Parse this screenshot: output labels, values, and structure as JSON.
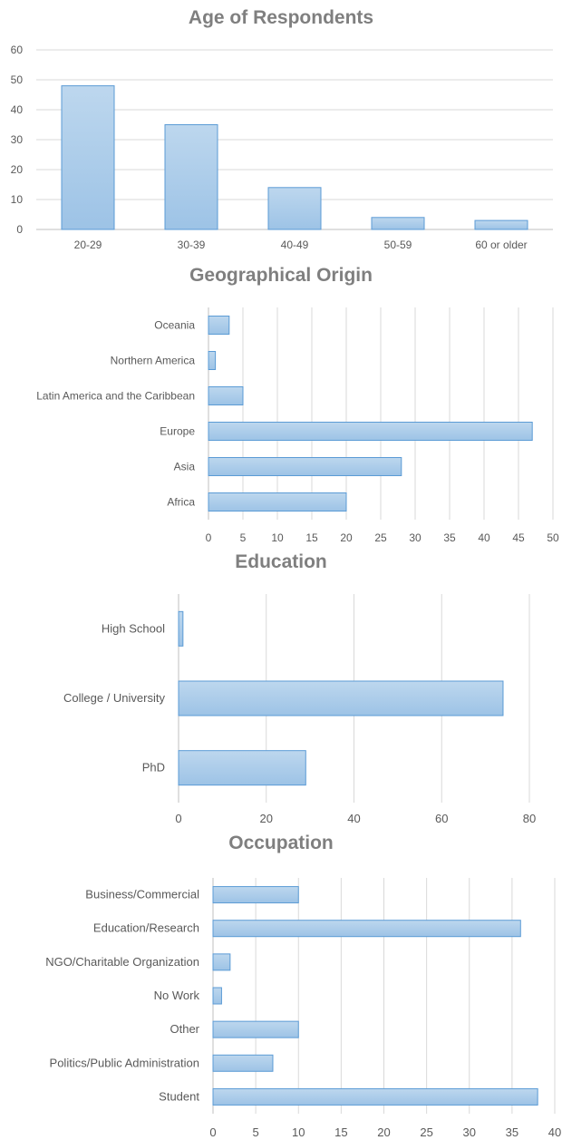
{
  "colors": {
    "bar_fill_top": "#bdd7ee",
    "bar_fill_bottom": "#9dc3e6",
    "bar_stroke": "#5b9bd5",
    "grid": "#d9d9d9",
    "axis": "#bfbfbf",
    "title": "#7f7f7f",
    "tick_text": "#595959"
  },
  "chart_data": [
    {
      "type": "bar",
      "orientation": "vertical",
      "title": "Age of Respondents",
      "categories": [
        "20-29",
        "30-39",
        "40-49",
        "50-59",
        "60 or older"
      ],
      "values": [
        48,
        35,
        14,
        4,
        3
      ],
      "ylim": [
        0,
        60
      ],
      "yticks": [
        "0",
        "10",
        "20",
        "30",
        "40",
        "50",
        "60"
      ],
      "grid": true
    },
    {
      "type": "bar",
      "orientation": "horizontal",
      "title": "Geographical Origin",
      "categories": [
        "Oceania",
        "Northern America",
        "Latin America and the Caribbean",
        "Europe",
        "Asia",
        "Africa"
      ],
      "values": [
        3,
        1,
        5,
        47,
        28,
        20
      ],
      "xlim": [
        0,
        50
      ],
      "xticks": [
        "0",
        "5",
        "10",
        "15",
        "20",
        "25",
        "30",
        "35",
        "40",
        "45",
        "50"
      ],
      "grid": true
    },
    {
      "type": "bar",
      "orientation": "horizontal",
      "title": "Education",
      "categories": [
        "High School",
        "College / University",
        "PhD"
      ],
      "values": [
        1,
        74,
        29
      ],
      "xlim": [
        0,
        80
      ],
      "xticks": [
        "0",
        "20",
        "40",
        "60",
        "80"
      ],
      "grid": true
    },
    {
      "type": "bar",
      "orientation": "horizontal",
      "title": "Occupation",
      "categories": [
        "Business/Commercial",
        "Education/Research",
        "NGO/Charitable Organization",
        "No Work",
        "Other",
        "Politics/Public Administration",
        "Student"
      ],
      "values": [
        10,
        36,
        2,
        1,
        10,
        7,
        38
      ],
      "xlim": [
        0,
        40
      ],
      "xticks": [
        "0",
        "5",
        "10",
        "15",
        "20",
        "25",
        "30",
        "35",
        "40"
      ],
      "grid": true
    }
  ]
}
